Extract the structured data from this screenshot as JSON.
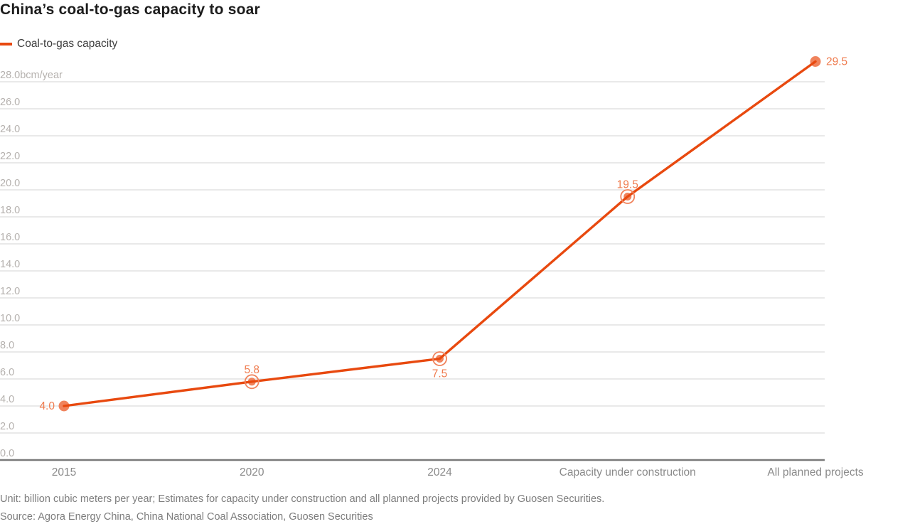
{
  "title": "China’s coal-to-gas capacity to soar",
  "legend": {
    "label": "Coal-to-gas capacity"
  },
  "footer": {
    "note": "Unit: billion cubic meters per year; Estimates for capacity under construction and all planned projects provided by Guosen Securities.",
    "source": "Source: Agora Energy China, China National Coal Association, Guosen Securities"
  },
  "chart_data": {
    "type": "line",
    "title": "China’s coal-to-gas capacity to soar",
    "series_name": "Coal-to-gas capacity",
    "categories": [
      "2015",
      "2020",
      "2024",
      "Capacity under construction",
      "All planned projects"
    ],
    "values": [
      4.0,
      5.8,
      7.5,
      19.5,
      29.5
    ],
    "point_labels": [
      "4.0",
      "5.8",
      "7.5",
      "19.5",
      "29.5"
    ],
    "label_positions": [
      "left",
      "above",
      "below",
      "above",
      "right"
    ],
    "marker_styles": [
      "solid",
      "ring",
      "ring",
      "ring",
      "solid"
    ],
    "y_axis": {
      "min": 0,
      "max": 28,
      "step": 2,
      "top_tick_label": "28.0bcm/year",
      "tick_decimals": 1
    },
    "ylim": [
      0,
      29.5
    ],
    "grid": true,
    "legend_position": "top-left",
    "colors": {
      "line": "#e8490f",
      "marker": "#f0835c",
      "point_label": "#ef7c4f",
      "grid": "#dcdcdc",
      "axis_line": "#7a7a7a",
      "tick_label": "#b5b1ae",
      "category_label": "#8a8a8a"
    }
  }
}
